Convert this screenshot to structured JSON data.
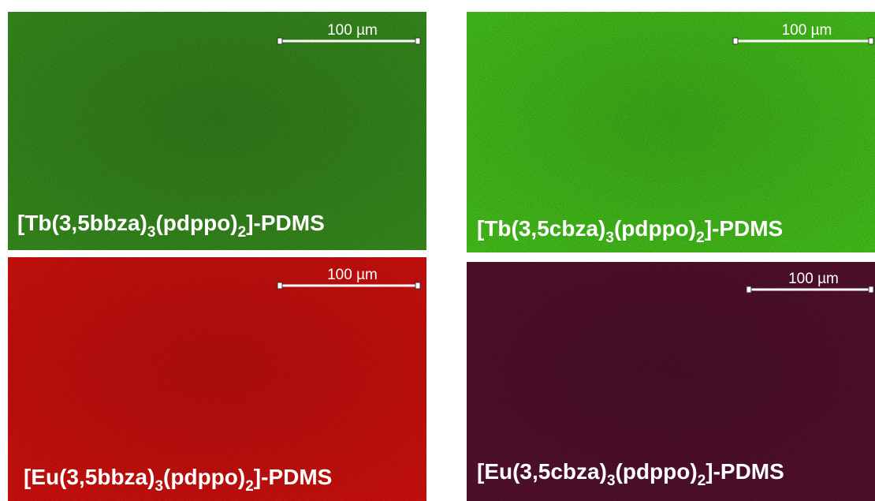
{
  "panels": [
    {
      "scale_label": "100 µm",
      "caption": [
        "[Tb(3,5bbza)",
        "3",
        "(pdppo)",
        "2",
        "]-PDMS"
      ]
    },
    {
      "scale_label": "100 µm",
      "caption": [
        "[Tb(3,5cbza)",
        "3",
        "(pdppo)",
        "2",
        "]-PDMS"
      ]
    },
    {
      "scale_label": "100 µm",
      "caption": [
        "[Eu(3,5bbza)",
        "3",
        "(pdppo)",
        "2",
        "]-PDMS"
      ]
    },
    {
      "scale_label": "100 µm",
      "caption": [
        "[Eu(3,5cbza)",
        "3",
        "(pdppo)",
        "2",
        "]-PDMS"
      ]
    }
  ]
}
